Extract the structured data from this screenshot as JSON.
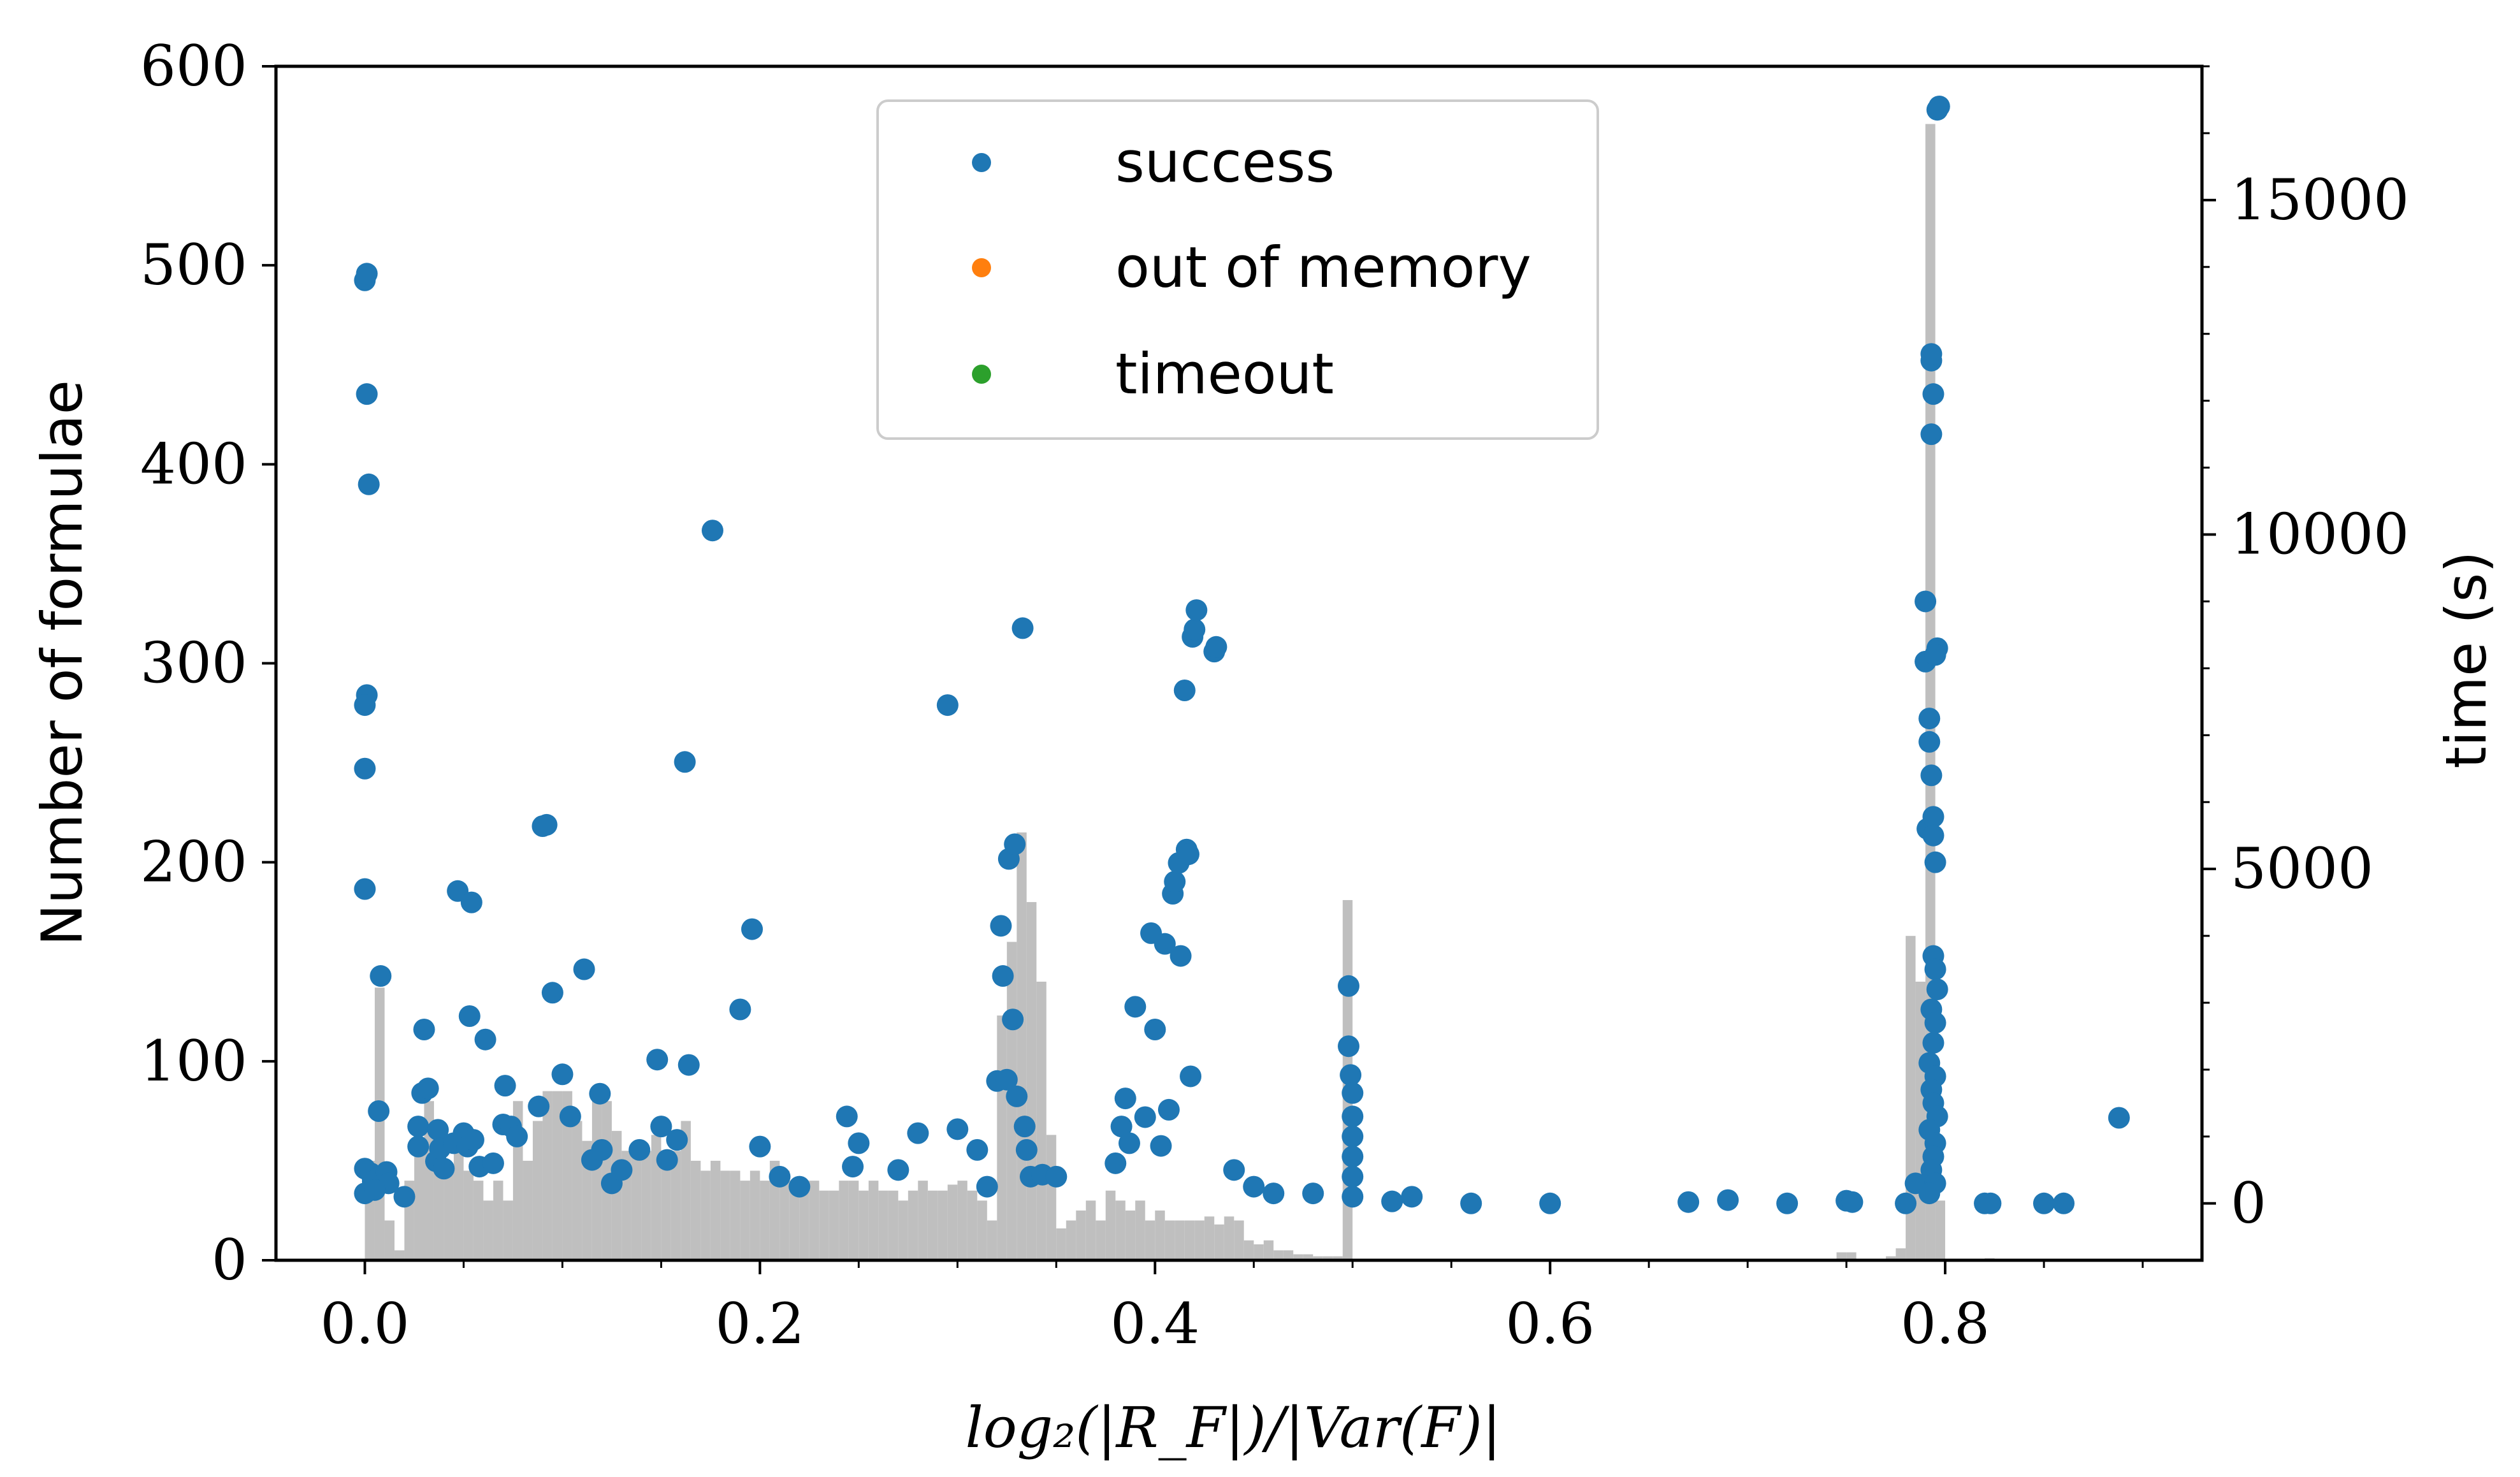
{
  "chart_data": {
    "type": "bar+scatter",
    "xlabel": "log₂(|R_F|)/|Var(F)|",
    "ylabel": "Number of formulae",
    "y2label": "time (s)",
    "xlim": [
      -0.045,
      0.93
    ],
    "ylim": [
      0,
      600
    ],
    "y2lim": [
      -850,
      17000
    ],
    "x_ticks": [
      "0.0",
      "0.2",
      "0.4",
      "0.6",
      "0.8"
    ],
    "x_tick_values": [
      0.0,
      0.2,
      0.4,
      0.6,
      0.8
    ],
    "y_ticks": [
      "0",
      "100",
      "200",
      "300",
      "400",
      "500",
      "600"
    ],
    "y_tick_values": [
      0,
      100,
      200,
      300,
      400,
      500,
      600
    ],
    "y2_ticks": [
      "0",
      "5000",
      "10000",
      "15000"
    ],
    "y2_tick_values": [
      0,
      5000,
      10000,
      15000
    ],
    "legend": {
      "placement": "upper-center",
      "entries": [
        {
          "label": "success",
          "color": "#1f77b4"
        },
        {
          "label": "out of memory",
          "color": "#ff7f0e"
        },
        {
          "label": "timeout",
          "color": "#2ca02c"
        }
      ]
    },
    "histogram": {
      "color": "#bfbfbf",
      "bin_width": 0.005,
      "bins": [
        [
          0.0,
          50
        ],
        [
          0.005,
          137
        ],
        [
          0.01,
          20
        ],
        [
          0.015,
          5
        ],
        [
          0.02,
          40
        ],
        [
          0.025,
          60
        ],
        [
          0.03,
          80
        ],
        [
          0.035,
          65
        ],
        [
          0.04,
          45
        ],
        [
          0.045,
          55
        ],
        [
          0.05,
          45
        ],
        [
          0.055,
          40
        ],
        [
          0.06,
          30
        ],
        [
          0.065,
          40
        ],
        [
          0.07,
          30
        ],
        [
          0.075,
          80
        ],
        [
          0.08,
          50
        ],
        [
          0.085,
          70
        ],
        [
          0.09,
          85
        ],
        [
          0.095,
          85
        ],
        [
          0.1,
          85
        ],
        [
          0.105,
          70
        ],
        [
          0.11,
          60
        ],
        [
          0.115,
          85
        ],
        [
          0.12,
          80
        ],
        [
          0.125,
          65
        ],
        [
          0.13,
          55
        ],
        [
          0.135,
          55
        ],
        [
          0.14,
          55
        ],
        [
          0.145,
          63
        ],
        [
          0.15,
          55
        ],
        [
          0.155,
          55
        ],
        [
          0.16,
          70
        ],
        [
          0.165,
          50
        ],
        [
          0.17,
          45
        ],
        [
          0.175,
          50
        ],
        [
          0.18,
          45
        ],
        [
          0.185,
          45
        ],
        [
          0.19,
          40
        ],
        [
          0.195,
          45
        ],
        [
          0.2,
          40
        ],
        [
          0.205,
          50
        ],
        [
          0.21,
          45
        ],
        [
          0.215,
          40
        ],
        [
          0.22,
          40
        ],
        [
          0.225,
          40
        ],
        [
          0.23,
          35
        ],
        [
          0.235,
          35
        ],
        [
          0.24,
          40
        ],
        [
          0.245,
          40
        ],
        [
          0.25,
          35
        ],
        [
          0.255,
          40
        ],
        [
          0.26,
          35
        ],
        [
          0.265,
          35
        ],
        [
          0.27,
          30
        ],
        [
          0.275,
          35
        ],
        [
          0.28,
          40
        ],
        [
          0.285,
          35
        ],
        [
          0.29,
          35
        ],
        [
          0.295,
          38
        ],
        [
          0.3,
          40
        ],
        [
          0.305,
          35
        ],
        [
          0.31,
          30
        ],
        [
          0.315,
          20
        ],
        [
          0.32,
          123
        ],
        [
          0.325,
          160
        ],
        [
          0.33,
          215
        ],
        [
          0.335,
          180
        ],
        [
          0.34,
          140
        ],
        [
          0.345,
          63
        ],
        [
          0.35,
          16
        ],
        [
          0.355,
          20
        ],
        [
          0.36,
          25
        ],
        [
          0.365,
          30
        ],
        [
          0.37,
          20
        ],
        [
          0.375,
          35
        ],
        [
          0.38,
          30
        ],
        [
          0.385,
          25
        ],
        [
          0.39,
          30
        ],
        [
          0.395,
          20
        ],
        [
          0.4,
          25
        ],
        [
          0.405,
          20
        ],
        [
          0.41,
          20
        ],
        [
          0.415,
          20
        ],
        [
          0.42,
          20
        ],
        [
          0.425,
          22
        ],
        [
          0.43,
          18
        ],
        [
          0.435,
          22
        ],
        [
          0.44,
          20
        ],
        [
          0.445,
          10
        ],
        [
          0.45,
          8
        ],
        [
          0.455,
          10
        ],
        [
          0.46,
          5
        ],
        [
          0.465,
          5
        ],
        [
          0.47,
          3
        ],
        [
          0.475,
          3
        ],
        [
          0.48,
          2
        ],
        [
          0.485,
          2
        ],
        [
          0.49,
          2
        ],
        [
          0.495,
          181
        ],
        [
          0.745,
          4
        ],
        [
          0.75,
          4
        ],
        [
          0.77,
          2
        ],
        [
          0.775,
          6
        ],
        [
          0.78,
          163
        ],
        [
          0.785,
          140
        ],
        [
          0.79,
          571
        ],
        [
          0.795,
          30
        ],
        [
          0.82,
          1
        ]
      ]
    },
    "series": [
      {
        "name": "success",
        "color": "#1f77b4",
        "axis": "right",
        "points": [
          [
            0.0,
            13800
          ],
          [
            0.001,
            13900
          ],
          [
            0.001,
            12100
          ],
          [
            0.002,
            10750
          ],
          [
            0.001,
            7600
          ],
          [
            0.0,
            7450
          ],
          [
            0.0,
            6500
          ],
          [
            0.0,
            4700
          ],
          [
            0.008,
            3400
          ],
          [
            0.007,
            1380
          ],
          [
            0.0,
            520
          ],
          [
            0.003,
            450
          ],
          [
            0.004,
            330
          ],
          [
            0.007,
            380
          ],
          [
            0.011,
            470
          ],
          [
            0.012,
            300
          ],
          [
            0.0,
            150
          ],
          [
            0.005,
            200
          ],
          [
            0.02,
            100
          ],
          [
            0.027,
            1150
          ],
          [
            0.03,
            2600
          ],
          [
            0.029,
            1650
          ],
          [
            0.032,
            1720
          ],
          [
            0.027,
            850
          ],
          [
            0.037,
            1100
          ],
          [
            0.036,
            630
          ],
          [
            0.038,
            820
          ],
          [
            0.04,
            520
          ],
          [
            0.045,
            900
          ],
          [
            0.047,
            4670
          ],
          [
            0.05,
            1050
          ],
          [
            0.052,
            850
          ],
          [
            0.053,
            2800
          ],
          [
            0.055,
            950
          ],
          [
            0.058,
            550
          ],
          [
            0.054,
            4500
          ],
          [
            0.061,
            2450
          ],
          [
            0.065,
            600
          ],
          [
            0.07,
            1180
          ],
          [
            0.074,
            1150
          ],
          [
            0.071,
            1760
          ],
          [
            0.077,
            1000
          ],
          [
            0.088,
            1450
          ],
          [
            0.09,
            5640
          ],
          [
            0.092,
            5660
          ],
          [
            0.095,
            3150
          ],
          [
            0.1,
            1930
          ],
          [
            0.104,
            1300
          ],
          [
            0.111,
            3500
          ],
          [
            0.115,
            650
          ],
          [
            0.119,
            1640
          ],
          [
            0.12,
            800
          ],
          [
            0.125,
            300
          ],
          [
            0.13,
            500
          ],
          [
            0.139,
            800
          ],
          [
            0.148,
            2150
          ],
          [
            0.15,
            1150
          ],
          [
            0.153,
            650
          ],
          [
            0.158,
            950
          ],
          [
            0.162,
            6600
          ],
          [
            0.164,
            2070
          ],
          [
            0.176,
            10060
          ],
          [
            0.19,
            2900
          ],
          [
            0.196,
            4100
          ],
          [
            0.2,
            850
          ],
          [
            0.21,
            400
          ],
          [
            0.22,
            250
          ],
          [
            0.244,
            1300
          ],
          [
            0.247,
            550
          ],
          [
            0.25,
            900
          ],
          [
            0.27,
            500
          ],
          [
            0.28,
            1050
          ],
          [
            0.295,
            7450
          ],
          [
            0.3,
            1110
          ],
          [
            0.31,
            800
          ],
          [
            0.315,
            250
          ],
          [
            0.32,
            1830
          ],
          [
            0.322,
            4150
          ],
          [
            0.323,
            3400
          ],
          [
            0.325,
            1850
          ],
          [
            0.328,
            2750
          ],
          [
            0.326,
            5150
          ],
          [
            0.329,
            5370
          ],
          [
            0.33,
            1600
          ],
          [
            0.333,
            8600
          ],
          [
            0.334,
            1150
          ],
          [
            0.335,
            800
          ],
          [
            0.337,
            400
          ],
          [
            0.343,
            430
          ],
          [
            0.35,
            400
          ],
          [
            0.38,
            600
          ],
          [
            0.383,
            1150
          ],
          [
            0.385,
            1570
          ],
          [
            0.387,
            900
          ],
          [
            0.39,
            2940
          ],
          [
            0.395,
            1290
          ],
          [
            0.398,
            4040
          ],
          [
            0.4,
            2600
          ],
          [
            0.403,
            860
          ],
          [
            0.405,
            3880
          ],
          [
            0.407,
            1400
          ],
          [
            0.409,
            4630
          ],
          [
            0.41,
            4810
          ],
          [
            0.412,
            5090
          ],
          [
            0.413,
            3700
          ],
          [
            0.415,
            7670
          ],
          [
            0.416,
            5290
          ],
          [
            0.417,
            5220
          ],
          [
            0.418,
            1900
          ],
          [
            0.419,
            8470
          ],
          [
            0.42,
            8580
          ],
          [
            0.421,
            8870
          ],
          [
            0.43,
            8250
          ],
          [
            0.431,
            8320
          ],
          [
            0.44,
            500
          ],
          [
            0.45,
            250
          ],
          [
            0.46,
            150
          ],
          [
            0.48,
            150
          ],
          [
            0.498,
            3250
          ],
          [
            0.498,
            2350
          ],
          [
            0.499,
            1920
          ],
          [
            0.5,
            1650
          ],
          [
            0.5,
            1300
          ],
          [
            0.5,
            1000
          ],
          [
            0.5,
            700
          ],
          [
            0.5,
            400
          ],
          [
            0.5,
            100
          ],
          [
            0.52,
            30
          ],
          [
            0.53,
            100
          ],
          [
            0.56,
            0
          ],
          [
            0.6,
            0
          ],
          [
            0.67,
            20
          ],
          [
            0.69,
            50
          ],
          [
            0.72,
            0
          ],
          [
            0.75,
            40
          ],
          [
            0.753,
            20
          ],
          [
            0.78,
            0
          ],
          [
            0.785,
            300
          ],
          [
            0.79,
            9000
          ],
          [
            0.79,
            8100
          ],
          [
            0.791,
            5600
          ],
          [
            0.792,
            7250
          ],
          [
            0.792,
            6900
          ],
          [
            0.793,
            6400
          ],
          [
            0.794,
            5780
          ],
          [
            0.794,
            5500
          ],
          [
            0.795,
            5100
          ],
          [
            0.793,
            12600
          ],
          [
            0.793,
            12700
          ],
          [
            0.794,
            12100
          ],
          [
            0.793,
            11500
          ],
          [
            0.796,
            16350
          ],
          [
            0.797,
            16400
          ],
          [
            0.796,
            8300
          ],
          [
            0.795,
            8200
          ],
          [
            0.794,
            3700
          ],
          [
            0.795,
            3500
          ],
          [
            0.796,
            3200
          ],
          [
            0.793,
            2900
          ],
          [
            0.795,
            2700
          ],
          [
            0.794,
            2400
          ],
          [
            0.792,
            2100
          ],
          [
            0.795,
            1900
          ],
          [
            0.793,
            1700
          ],
          [
            0.794,
            1500
          ],
          [
            0.796,
            1300
          ],
          [
            0.792,
            1100
          ],
          [
            0.795,
            900
          ],
          [
            0.794,
            700
          ],
          [
            0.793,
            500
          ],
          [
            0.795,
            300
          ],
          [
            0.792,
            150
          ],
          [
            0.82,
            0
          ],
          [
            0.823,
            0
          ],
          [
            0.85,
            0
          ],
          [
            0.86,
            0
          ],
          [
            0.888,
            1280
          ]
        ]
      },
      {
        "name": "out of memory",
        "color": "#ff7f0e",
        "axis": "right",
        "points": []
      },
      {
        "name": "timeout",
        "color": "#2ca02c",
        "axis": "right",
        "points": []
      }
    ]
  }
}
